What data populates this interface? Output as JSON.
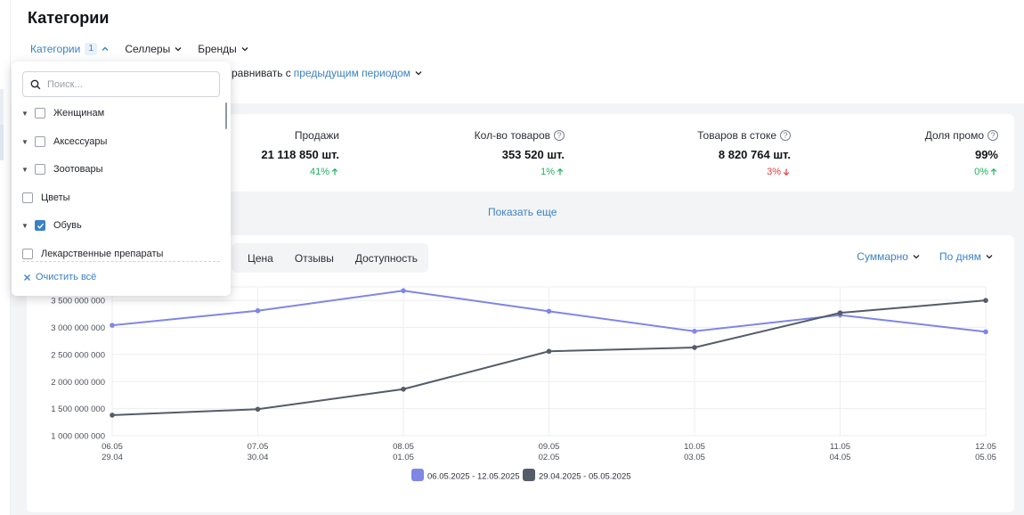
{
  "page": {
    "title": "Категории"
  },
  "filters": [
    {
      "label": "Категории",
      "badge": "1",
      "active": true
    },
    {
      "label": "Селлеры",
      "badge": "",
      "active": false
    },
    {
      "label": "Бренды",
      "badge": "",
      "active": false
    }
  ],
  "compare": {
    "prefix": "равнивать с",
    "link": "предыдущим периодом"
  },
  "kpis": [
    {
      "label": "Продажи",
      "value": "21 118 850 шт.",
      "delta": "41%",
      "dir": "up",
      "help": false
    },
    {
      "label": "Кол-во товаров",
      "value": "353 520 шт.",
      "delta": "1%",
      "dir": "up",
      "help": true
    },
    {
      "label": "Товаров в стоке",
      "value": "8 820 764 шт.",
      "delta": "3%",
      "dir": "down",
      "help": true
    },
    {
      "label": "Доля промо",
      "value": "99%",
      "delta": "0%",
      "dir": "up",
      "help": true
    }
  ],
  "show_more": "Показать еще",
  "tabs": [
    "Цена",
    "Отзывы",
    "Доступность"
  ],
  "view_controls": {
    "aggregate": "Суммарно",
    "period": "По дням"
  },
  "dropdown": {
    "search_placeholder": "Поиск...",
    "items": [
      {
        "label": "Женщинам",
        "expandable": true,
        "checked": false
      },
      {
        "label": "Аксессуары",
        "expandable": true,
        "checked": false
      },
      {
        "label": "Зоотовары",
        "expandable": true,
        "checked": false
      },
      {
        "label": "Цветы",
        "expandable": false,
        "checked": false
      },
      {
        "label": "Обувь",
        "expandable": true,
        "checked": true
      },
      {
        "label": "Лекарственные препараты",
        "expandable": false,
        "checked": false
      }
    ],
    "clear_label": "Очистить всё"
  },
  "colors": {
    "accent": "#3b82c4",
    "series1": "#7f86e6",
    "series2": "#545c68",
    "up": "#20b05a",
    "down": "#e23b3b"
  },
  "chart_data": {
    "type": "line",
    "x": [
      "06.05",
      "07.05",
      "08.05",
      "09.05",
      "10.05",
      "11.05",
      "12.05"
    ],
    "x_secondary": [
      "29.04",
      "30.04",
      "01.05",
      "02.05",
      "03.05",
      "04.05",
      "05.05"
    ],
    "y_ticks": [
      "1 000 000 000",
      "1 500 000 000",
      "2 000 000 000",
      "2 500 000 000",
      "3 000 000 000",
      "3 500 000 000"
    ],
    "ylim": [
      1000000000,
      3750000000
    ],
    "grid": true,
    "legend_position": "bottom",
    "series": [
      {
        "name": "06.05.2025 - 12.05.2025",
        "values": [
          3040000000,
          3310000000,
          3680000000,
          3300000000,
          2930000000,
          3230000000,
          2920000000
        ]
      },
      {
        "name": "29.04.2025 - 05.05.2025",
        "values": [
          1380000000,
          1490000000,
          1860000000,
          2560000000,
          2630000000,
          3270000000,
          3500000000
        ]
      }
    ]
  }
}
